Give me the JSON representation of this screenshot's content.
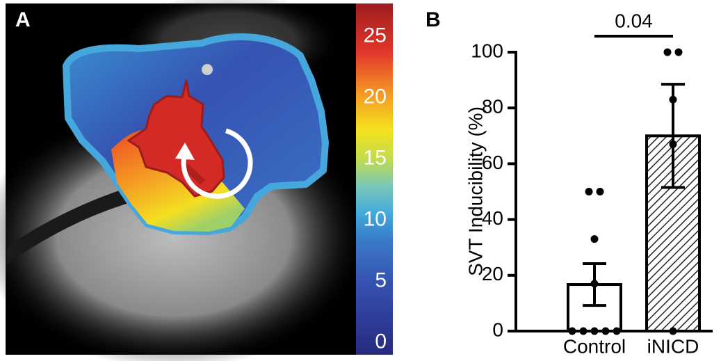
{
  "chart_data": [
    {
      "type": "colormap",
      "panel_label": "A",
      "clim": [
        -1,
        27.7
      ],
      "cticks": [
        0,
        5,
        10,
        15,
        20,
        25
      ]
    },
    {
      "type": "bar",
      "panel_label": "B",
      "ylabel": "SVT Inducibility (%)",
      "categories": [
        "Control",
        "iNICD"
      ],
      "values": [
        16.7,
        70
      ],
      "errors": [
        7.5,
        18.5
      ],
      "points": [
        [
          50,
          50,
          33,
          17,
          0,
          0,
          0,
          0,
          0
        ],
        [
          100,
          100,
          83,
          67,
          0
        ]
      ],
      "colors": [
        "#ffffff",
        "#ffffff"
      ],
      "hatch": [
        false,
        true
      ],
      "ylim": [
        0,
        100
      ],
      "yticks": [
        0,
        20,
        40,
        60,
        80,
        100
      ],
      "annotation": "0.04"
    }
  ]
}
